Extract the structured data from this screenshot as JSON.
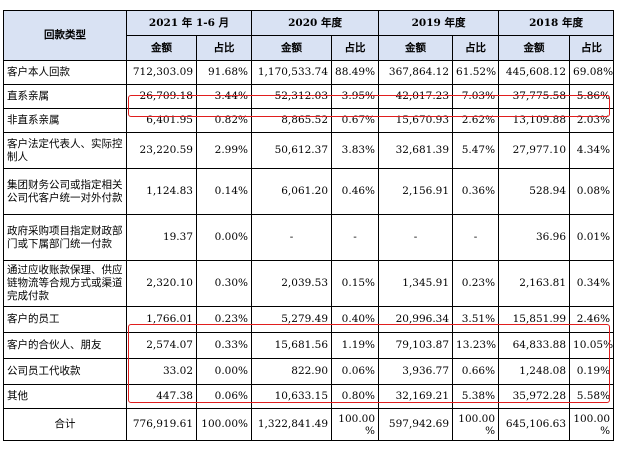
{
  "header": {
    "type_label": "回款类型",
    "periods": [
      "2021 年 1-6 月",
      "2020 年度",
      "2019 年度",
      "2018 年度"
    ],
    "amount_label": "金额",
    "ratio_label": "占比"
  },
  "rows": [
    {
      "label": "客户本人回款",
      "cells": [
        "712,303.09",
        "91.68%",
        "1,170,533.74",
        "88.49%",
        "367,864.12",
        "61.52%",
        "445,608.12",
        "69.08%"
      ]
    },
    {
      "label": "直系亲属",
      "cells": [
        "26,709.18",
        "3.44%",
        "52,312.03",
        "3.95%",
        "42,017.23",
        "7.03%",
        "37,775.58",
        "5.86%"
      ]
    },
    {
      "label": "非直系亲属",
      "cells": [
        "6,401.95",
        "0.82%",
        "8,865.52",
        "0.67%",
        "15,670.93",
        "2.62%",
        "13,109.88",
        "2.03%"
      ]
    },
    {
      "label": "客户法定代表人、实际控制人",
      "cells": [
        "23,220.59",
        "2.99%",
        "50,612.37",
        "3.83%",
        "32,681.39",
        "5.47%",
        "27,977.10",
        "4.34%"
      ]
    },
    {
      "label": "集团财务公司或指定相关公司代客户统一对外付款",
      "cells": [
        "1,124.83",
        "0.14%",
        "6,061.20",
        "0.46%",
        "2,156.91",
        "0.36%",
        "528.94",
        "0.08%"
      ]
    },
    {
      "label": "政府采购项目指定财政部门或下属部门统一付款",
      "cells": [
        "19.37",
        "0.00%",
        "-",
        "-",
        "-",
        "-",
        "36.96",
        "0.01%"
      ]
    },
    {
      "label": "通过应收账款保理、供应链物流等合规方式或渠道完成付款",
      "cells": [
        "2,320.10",
        "0.30%",
        "2,039.53",
        "0.15%",
        "1,345.91",
        "0.23%",
        "2,163.81",
        "0.34%"
      ]
    },
    {
      "label": "客户的员工",
      "cells": [
        "1,766.01",
        "0.23%",
        "5,279.49",
        "0.40%",
        "20,996.34",
        "3.51%",
        "15,851.99",
        "2.46%"
      ]
    },
    {
      "label": "客户的合伙人、朋友",
      "cells": [
        "2,574.07",
        "0.33%",
        "15,681.56",
        "1.19%",
        "79,103.87",
        "13.23%",
        "64,833.88",
        "10.05%"
      ]
    },
    {
      "label": "公司员工代收款",
      "cells": [
        "33.02",
        "0.00%",
        "822.90",
        "0.06%",
        "3,936.77",
        "0.66%",
        "1,248.08",
        "0.19%"
      ]
    },
    {
      "label": "其他",
      "cells": [
        "447.38",
        "0.06%",
        "10,633.15",
        "0.80%",
        "32,169.21",
        "5.38%",
        "35,972.28",
        "5.58%"
      ]
    },
    {
      "label": "合计",
      "cells": [
        "776,919.61",
        "100.00%",
        "1,322,841.49",
        "100.00 %",
        "597,942.69",
        "100.00 %",
        "645,106.63",
        "100.00 %"
      ]
    }
  ],
  "highlight_color": "#e01e1e"
}
